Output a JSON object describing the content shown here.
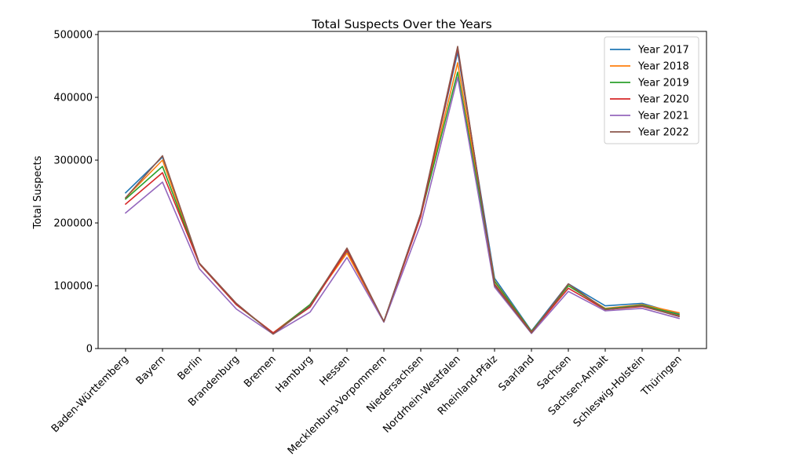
{
  "chart_data": {
    "type": "line",
    "title": "Total Suspects Over the Years",
    "xlabel": "",
    "ylabel": "Total Suspects",
    "ylim": [
      0,
      505000
    ],
    "yticks": [
      0,
      100000,
      200000,
      300000,
      400000,
      500000
    ],
    "ytick_labels": [
      "0",
      "100000",
      "200000",
      "300000",
      "400000",
      "500000"
    ],
    "grid": false,
    "legend_position": "top-right",
    "categories": [
      "Baden-Württemberg",
      "Bayern",
      "Berlin",
      "Brandenburg",
      "Bremen",
      "Hamburg",
      "Hessen",
      "Mecklenburg-Vorpommern",
      "Niedersachsen",
      "Nordrhein-Westfalen",
      "Rheinland-Pfalz",
      "Saarland",
      "Sachsen",
      "Sachsen-Anhalt",
      "Schleswig-Holstein",
      "Thüringen"
    ],
    "series": [
      {
        "name": "Year 2017",
        "color": "#1f77b4",
        "values": [
          248000,
          305000,
          135000,
          70000,
          25000,
          70000,
          155000,
          43000,
          215000,
          472000,
          112000,
          28000,
          103000,
          68000,
          72000,
          55000
        ]
      },
      {
        "name": "Year 2018",
        "color": "#ff7f0e",
        "values": [
          240000,
          300000,
          135000,
          70000,
          25000,
          70000,
          152000,
          43000,
          212000,
          455000,
          108000,
          27000,
          100000,
          64000,
          70000,
          57000
        ]
      },
      {
        "name": "Year 2019",
        "color": "#2ca02c",
        "values": [
          238000,
          290000,
          135000,
          70000,
          24000,
          70000,
          157000,
          43000,
          212000,
          440000,
          107000,
          27000,
          100000,
          63000,
          69000,
          54000
        ]
      },
      {
        "name": "Year 2020",
        "color": "#d62728",
        "values": [
          230000,
          280000,
          135000,
          70000,
          25000,
          66000,
          157000,
          43000,
          210000,
          478000,
          103000,
          26000,
          96000,
          62000,
          67000,
          52000
        ]
      },
      {
        "name": "Year 2021",
        "color": "#9467bd",
        "values": [
          216000,
          265000,
          127000,
          63000,
          23000,
          58000,
          145000,
          42000,
          198000,
          432000,
          98000,
          24000,
          91000,
          60000,
          64000,
          48000
        ]
      },
      {
        "name": "Year 2022",
        "color": "#8c564b",
        "values": [
          240000,
          307000,
          136000,
          72000,
          23000,
          68000,
          160000,
          43000,
          215000,
          481000,
          101000,
          25000,
          103000,
          62000,
          68000,
          51000
        ]
      }
    ]
  }
}
